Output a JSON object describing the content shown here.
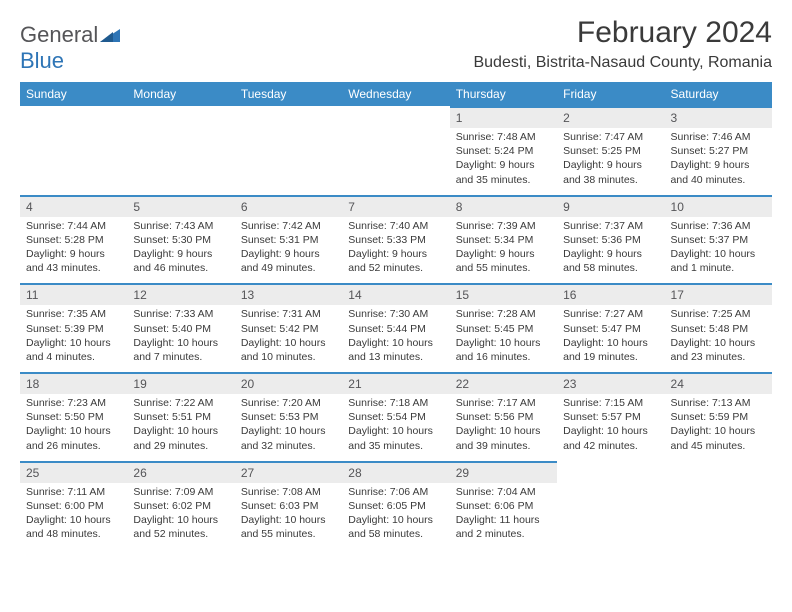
{
  "brand": {
    "part1": "General",
    "part2": "Blue"
  },
  "title": "February 2024",
  "subtitle": "Budesti, Bistrita-Nasaud County, Romania",
  "colors": {
    "header_bg": "#3b8bc6",
    "header_text": "#ffffff",
    "daynum_bg": "#ececec",
    "daynum_border": "#3b8bc6",
    "text": "#3a3a3a",
    "logo_gray": "#555558",
    "logo_blue": "#2e75b6",
    "page_bg": "#ffffff"
  },
  "fonts": {
    "title_size": 30,
    "subtitle_size": 16,
    "th_size": 12,
    "daynum_size": 12,
    "body_size": 10.5
  },
  "weekdays": [
    "Sunday",
    "Monday",
    "Tuesday",
    "Wednesday",
    "Thursday",
    "Friday",
    "Saturday"
  ],
  "weeks": [
    [
      {
        "empty": true
      },
      {
        "empty": true
      },
      {
        "empty": true
      },
      {
        "empty": true
      },
      {
        "day": "1",
        "sunrise": "Sunrise: 7:48 AM",
        "sunset": "Sunset: 5:24 PM",
        "daylight": "Daylight: 9 hours and 35 minutes."
      },
      {
        "day": "2",
        "sunrise": "Sunrise: 7:47 AM",
        "sunset": "Sunset: 5:25 PM",
        "daylight": "Daylight: 9 hours and 38 minutes."
      },
      {
        "day": "3",
        "sunrise": "Sunrise: 7:46 AM",
        "sunset": "Sunset: 5:27 PM",
        "daylight": "Daylight: 9 hours and 40 minutes."
      }
    ],
    [
      {
        "day": "4",
        "sunrise": "Sunrise: 7:44 AM",
        "sunset": "Sunset: 5:28 PM",
        "daylight": "Daylight: 9 hours and 43 minutes."
      },
      {
        "day": "5",
        "sunrise": "Sunrise: 7:43 AM",
        "sunset": "Sunset: 5:30 PM",
        "daylight": "Daylight: 9 hours and 46 minutes."
      },
      {
        "day": "6",
        "sunrise": "Sunrise: 7:42 AM",
        "sunset": "Sunset: 5:31 PM",
        "daylight": "Daylight: 9 hours and 49 minutes."
      },
      {
        "day": "7",
        "sunrise": "Sunrise: 7:40 AM",
        "sunset": "Sunset: 5:33 PM",
        "daylight": "Daylight: 9 hours and 52 minutes."
      },
      {
        "day": "8",
        "sunrise": "Sunrise: 7:39 AM",
        "sunset": "Sunset: 5:34 PM",
        "daylight": "Daylight: 9 hours and 55 minutes."
      },
      {
        "day": "9",
        "sunrise": "Sunrise: 7:37 AM",
        "sunset": "Sunset: 5:36 PM",
        "daylight": "Daylight: 9 hours and 58 minutes."
      },
      {
        "day": "10",
        "sunrise": "Sunrise: 7:36 AM",
        "sunset": "Sunset: 5:37 PM",
        "daylight": "Daylight: 10 hours and 1 minute."
      }
    ],
    [
      {
        "day": "11",
        "sunrise": "Sunrise: 7:35 AM",
        "sunset": "Sunset: 5:39 PM",
        "daylight": "Daylight: 10 hours and 4 minutes."
      },
      {
        "day": "12",
        "sunrise": "Sunrise: 7:33 AM",
        "sunset": "Sunset: 5:40 PM",
        "daylight": "Daylight: 10 hours and 7 minutes."
      },
      {
        "day": "13",
        "sunrise": "Sunrise: 7:31 AM",
        "sunset": "Sunset: 5:42 PM",
        "daylight": "Daylight: 10 hours and 10 minutes."
      },
      {
        "day": "14",
        "sunrise": "Sunrise: 7:30 AM",
        "sunset": "Sunset: 5:44 PM",
        "daylight": "Daylight: 10 hours and 13 minutes."
      },
      {
        "day": "15",
        "sunrise": "Sunrise: 7:28 AM",
        "sunset": "Sunset: 5:45 PM",
        "daylight": "Daylight: 10 hours and 16 minutes."
      },
      {
        "day": "16",
        "sunrise": "Sunrise: 7:27 AM",
        "sunset": "Sunset: 5:47 PM",
        "daylight": "Daylight: 10 hours and 19 minutes."
      },
      {
        "day": "17",
        "sunrise": "Sunrise: 7:25 AM",
        "sunset": "Sunset: 5:48 PM",
        "daylight": "Daylight: 10 hours and 23 minutes."
      }
    ],
    [
      {
        "day": "18",
        "sunrise": "Sunrise: 7:23 AM",
        "sunset": "Sunset: 5:50 PM",
        "daylight": "Daylight: 10 hours and 26 minutes."
      },
      {
        "day": "19",
        "sunrise": "Sunrise: 7:22 AM",
        "sunset": "Sunset: 5:51 PM",
        "daylight": "Daylight: 10 hours and 29 minutes."
      },
      {
        "day": "20",
        "sunrise": "Sunrise: 7:20 AM",
        "sunset": "Sunset: 5:53 PM",
        "daylight": "Daylight: 10 hours and 32 minutes."
      },
      {
        "day": "21",
        "sunrise": "Sunrise: 7:18 AM",
        "sunset": "Sunset: 5:54 PM",
        "daylight": "Daylight: 10 hours and 35 minutes."
      },
      {
        "day": "22",
        "sunrise": "Sunrise: 7:17 AM",
        "sunset": "Sunset: 5:56 PM",
        "daylight": "Daylight: 10 hours and 39 minutes."
      },
      {
        "day": "23",
        "sunrise": "Sunrise: 7:15 AM",
        "sunset": "Sunset: 5:57 PM",
        "daylight": "Daylight: 10 hours and 42 minutes."
      },
      {
        "day": "24",
        "sunrise": "Sunrise: 7:13 AM",
        "sunset": "Sunset: 5:59 PM",
        "daylight": "Daylight: 10 hours and 45 minutes."
      }
    ],
    [
      {
        "day": "25",
        "sunrise": "Sunrise: 7:11 AM",
        "sunset": "Sunset: 6:00 PM",
        "daylight": "Daylight: 10 hours and 48 minutes."
      },
      {
        "day": "26",
        "sunrise": "Sunrise: 7:09 AM",
        "sunset": "Sunset: 6:02 PM",
        "daylight": "Daylight: 10 hours and 52 minutes."
      },
      {
        "day": "27",
        "sunrise": "Sunrise: 7:08 AM",
        "sunset": "Sunset: 6:03 PM",
        "daylight": "Daylight: 10 hours and 55 minutes."
      },
      {
        "day": "28",
        "sunrise": "Sunrise: 7:06 AM",
        "sunset": "Sunset: 6:05 PM",
        "daylight": "Daylight: 10 hours and 58 minutes."
      },
      {
        "day": "29",
        "sunrise": "Sunrise: 7:04 AM",
        "sunset": "Sunset: 6:06 PM",
        "daylight": "Daylight: 11 hours and 2 minutes."
      },
      {
        "empty": true
      },
      {
        "empty": true
      }
    ]
  ]
}
